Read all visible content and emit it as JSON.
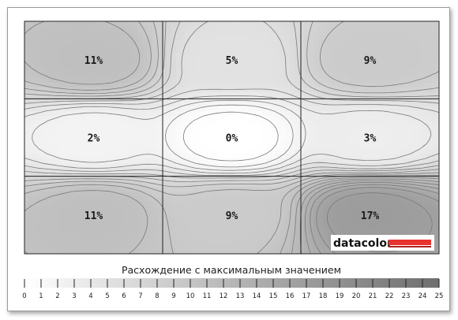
{
  "chart_data": {
    "type": "heatmap",
    "title": "",
    "rows": 3,
    "cols": 3,
    "grid_values": [
      [
        11,
        5,
        9
      ],
      [
        2,
        0,
        3
      ],
      [
        11,
        9,
        17
      ]
    ],
    "cell_labels": [
      [
        "11%",
        "5%",
        "9%"
      ],
      [
        "2%",
        "0%",
        "3%"
      ],
      [
        "11%",
        "9%",
        "17%"
      ]
    ],
    "legend": {
      "title": "Расхождение с максимальным значением",
      "min": 0,
      "max": 25,
      "ticks": [
        "0",
        "1",
        "2",
        "3",
        "4",
        "5",
        "6",
        "7",
        "8",
        "9",
        "10",
        "11",
        "12",
        "13",
        "14",
        "15",
        "16",
        "17",
        "18",
        "19",
        "20",
        "21",
        "22",
        "23",
        "24",
        "25"
      ],
      "color_low": "#ffffff",
      "color_high": "#6e6e6e"
    },
    "contours": true,
    "grid": true
  },
  "brand": {
    "name": "datacolor",
    "bar_color": "#e8322f"
  }
}
